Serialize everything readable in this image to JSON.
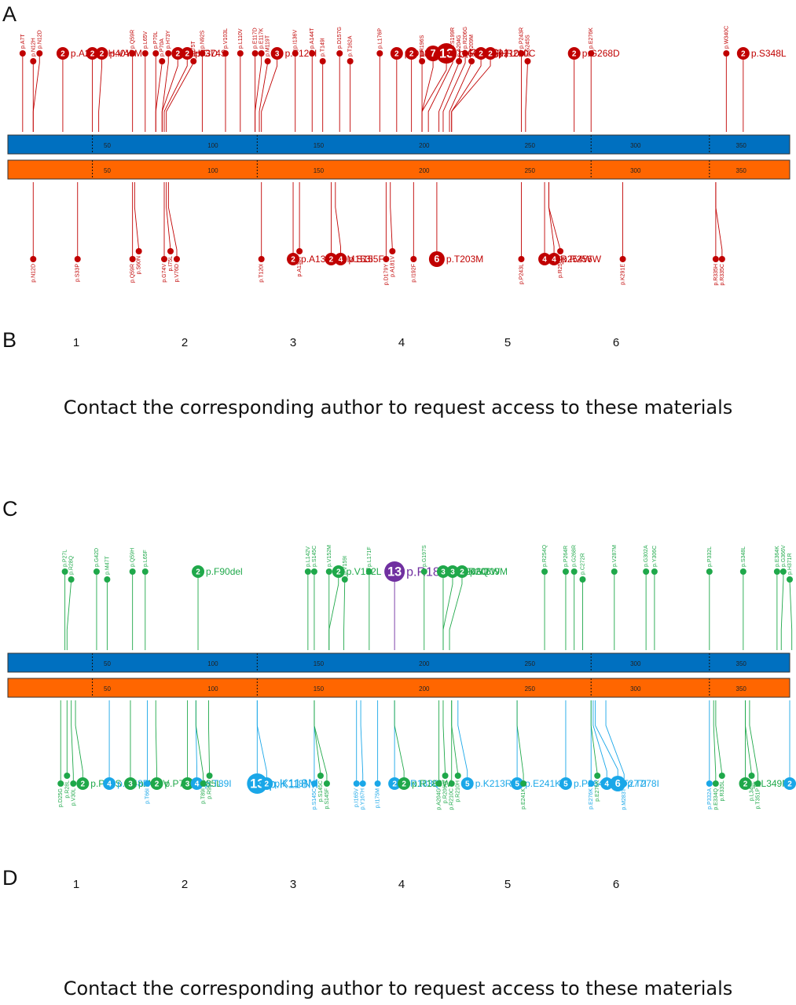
{
  "panels": {
    "A": {
      "letter": "A"
    },
    "B": {
      "letter": "B",
      "notice": "Contact the corresponding author to request access to these materials"
    },
    "C": {
      "letter": "C"
    },
    "D": {
      "letter": "D",
      "notice": "Contact the corresponding author to request access to these materials"
    }
  },
  "domains": [
    "1",
    "2",
    "3",
    "4",
    "5",
    "6"
  ],
  "colors": {
    "bar_top": "#0070c0",
    "bar_bottom": "#ff6600",
    "red": "#c00000",
    "green": "#1fa84a",
    "blue": "#1aa7e8",
    "purple": "#7030a0"
  },
  "chart_data": [
    {
      "type": "lollipop",
      "panel": "A",
      "protein_length": 370,
      "ticks": [
        50,
        100,
        150,
        200,
        250,
        300,
        350
      ],
      "domain_boundaries": [
        40,
        118,
        276,
        332
      ],
      "above": [
        {
          "pos": 7,
          "label": "p.A7T",
          "color": "red"
        },
        {
          "pos": 12,
          "label": "p.N12H",
          "color": "red"
        },
        {
          "pos": 12,
          "label": "p.N12D",
          "color": "red"
        },
        {
          "pos": 26,
          "label": "p.A26T",
          "count": 2,
          "color": "red"
        },
        {
          "pos": 40,
          "label": "p.H40Y",
          "count": 2,
          "color": "red"
        },
        {
          "pos": 43,
          "label": "p.V43M",
          "count": 2,
          "color": "red"
        },
        {
          "pos": 59,
          "label": "p.Q59R",
          "color": "red"
        },
        {
          "pos": 65,
          "label": "p.L65V",
          "color": "red"
        },
        {
          "pos": 70,
          "label": "p.P70L",
          "color": "red"
        },
        {
          "pos": 70,
          "label": "p.P70A",
          "color": "red"
        },
        {
          "pos": 73,
          "label": "p.H73Y",
          "color": "red"
        },
        {
          "pos": 73,
          "label": "p.H73D",
          "count": 2,
          "color": "red"
        },
        {
          "pos": 74,
          "label": "p.G74S",
          "count": 2,
          "color": "red"
        },
        {
          "pos": 75,
          "label": "p.I75T",
          "color": "red"
        },
        {
          "pos": 92,
          "label": "p.N92S",
          "color": "red"
        },
        {
          "pos": 103,
          "label": "p.V103L",
          "color": "red"
        },
        {
          "pos": 110,
          "label": "p.L110V",
          "color": "red"
        },
        {
          "pos": 117,
          "label": "p.E117D",
          "color": "red"
        },
        {
          "pos": 117,
          "label": "p.E117K",
          "color": "red"
        },
        {
          "pos": 119,
          "label": "p.M119T",
          "color": "red"
        },
        {
          "pos": 120,
          "label": "p.T120I",
          "count": 3,
          "color": "red"
        },
        {
          "pos": 136,
          "label": "p.I136V",
          "color": "red"
        },
        {
          "pos": 144,
          "label": "p.A144T",
          "color": "red"
        },
        {
          "pos": 149,
          "label": "p.T149I",
          "color": "red"
        },
        {
          "pos": 157,
          "label": "p.D157G",
          "color": "red"
        },
        {
          "pos": 162,
          "label": "p.T162A",
          "color": "red"
        },
        {
          "pos": 176,
          "label": "p.L176P",
          "color": "red"
        },
        {
          "pos": 184,
          "label": "p.D184Y",
          "count": 2,
          "color": "red"
        },
        {
          "pos": 191,
          "label": "p.K191E",
          "count": 2,
          "color": "red"
        },
        {
          "pos": 196,
          "label": "p.R196S",
          "color": "red"
        },
        {
          "pos": 196,
          "label": "p.R196C",
          "count": 7,
          "color": "red"
        },
        {
          "pos": 196,
          "label": "p.R196H",
          "count": 13,
          "color": "red"
        },
        {
          "pos": 199,
          "label": "p.S199R",
          "color": "red"
        },
        {
          "pos": 204,
          "label": "p.A204G",
          "color": "red"
        },
        {
          "pos": 206,
          "label": "p.R206G",
          "color": "red"
        },
        {
          "pos": 209,
          "label": "p.V209M",
          "color": "red"
        },
        {
          "pos": 210,
          "label": "p.R210H",
          "count": 2,
          "color": "red"
        },
        {
          "pos": 210,
          "label": "p.R210C",
          "count": 2,
          "color": "red"
        },
        {
          "pos": 243,
          "label": "p.P243R",
          "color": "red"
        },
        {
          "pos": 245,
          "label": "p.G245S",
          "color": "red"
        },
        {
          "pos": 268,
          "label": "p.G268D",
          "count": 2,
          "color": "red"
        },
        {
          "pos": 276,
          "label": "p.E276K",
          "color": "red"
        },
        {
          "pos": 340,
          "label": "p.W340C",
          "color": "red"
        },
        {
          "pos": 348,
          "label": "p.S348L",
          "count": 2,
          "color": "red"
        }
      ],
      "below": [
        {
          "pos": 12,
          "label": "p.N12D",
          "color": "red"
        },
        {
          "pos": 33,
          "label": "p.S33P",
          "color": "red"
        },
        {
          "pos": 59,
          "label": "p.Q59R",
          "color": "red"
        },
        {
          "pos": 60,
          "label": "p.S60N",
          "color": "red"
        },
        {
          "pos": 74,
          "label": "p.G74V",
          "color": "red"
        },
        {
          "pos": 75,
          "label": "p.I75L",
          "color": "red"
        },
        {
          "pos": 76,
          "label": "p.V76D",
          "color": "red"
        },
        {
          "pos": 120,
          "label": "p.T120I",
          "color": "red"
        },
        {
          "pos": 135,
          "label": "p.A135V",
          "count": 2,
          "color": "red"
        },
        {
          "pos": 138,
          "label": "p.A138T",
          "color": "red"
        },
        {
          "pos": 153,
          "label": "p.M153I",
          "count": 2,
          "color": "red"
        },
        {
          "pos": 155,
          "label": "p.S155F",
          "count": 4,
          "color": "red"
        },
        {
          "pos": 179,
          "label": "p.D179Y",
          "color": "red"
        },
        {
          "pos": 181,
          "label": "p.A181V",
          "color": "red"
        },
        {
          "pos": 192,
          "label": "p.I192F",
          "color": "red"
        },
        {
          "pos": 203,
          "label": "p.T203M",
          "count": 6,
          "color": "red"
        },
        {
          "pos": 243,
          "label": "p.P243L",
          "color": "red"
        },
        {
          "pos": 254,
          "label": "p.R254W",
          "count": 4,
          "color": "red"
        },
        {
          "pos": 256,
          "label": "p.R256W",
          "count": 4,
          "color": "red"
        },
        {
          "pos": 256,
          "label": "p.R256Q",
          "color": "red"
        },
        {
          "pos": 291,
          "label": "p.K291E",
          "color": "red"
        },
        {
          "pos": 335,
          "label": "p.R335H",
          "color": "red"
        },
        {
          "pos": 335,
          "label": "p.R335C",
          "color": "red"
        }
      ]
    },
    {
      "type": "lollipop",
      "panel": "C",
      "protein_length": 370,
      "ticks": [
        50,
        100,
        150,
        200,
        250,
        300,
        350
      ],
      "domain_boundaries": [
        40,
        118,
        276,
        332
      ],
      "above": [
        {
          "pos": 27,
          "label": "p.P27L",
          "color": "green"
        },
        {
          "pos": 28,
          "label": "p.R28Q",
          "color": "green"
        },
        {
          "pos": 42,
          "label": "p.G42D",
          "color": "green"
        },
        {
          "pos": 47,
          "label": "p.M47T",
          "color": "green"
        },
        {
          "pos": 59,
          "label": "p.Q59H",
          "color": "green"
        },
        {
          "pos": 65,
          "label": "p.L65F",
          "color": "green"
        },
        {
          "pos": 90,
          "label": "p.F90del",
          "count": 2,
          "color": "green"
        },
        {
          "pos": 142,
          "label": "p.L142V",
          "color": "green"
        },
        {
          "pos": 145,
          "label": "p.S145C",
          "color": "green"
        },
        {
          "pos": 152,
          "label": "p.V152M",
          "color": "green"
        },
        {
          "pos": 152,
          "label": "p.V152L",
          "count": 2,
          "color": "green"
        },
        {
          "pos": 159,
          "label": "p.V159I",
          "color": "green"
        },
        {
          "pos": 171,
          "label": "p.L171F",
          "color": "green"
        },
        {
          "pos": 183,
          "label": "p.R183WT",
          "count": 13,
          "color": "purple"
        },
        {
          "pos": 197,
          "label": "p.G197S",
          "color": "green"
        },
        {
          "pos": 206,
          "label": "p.R206Q",
          "count": 3,
          "color": "green"
        },
        {
          "pos": 206,
          "label": "p.R206W",
          "count": 3,
          "color": "green"
        },
        {
          "pos": 209,
          "label": "p.V209M",
          "count": 2,
          "color": "green"
        },
        {
          "pos": 254,
          "label": "p.R254Q",
          "color": "green"
        },
        {
          "pos": 264,
          "label": "p.P264R",
          "color": "green"
        },
        {
          "pos": 268,
          "label": "p.G268R",
          "color": "green"
        },
        {
          "pos": 272,
          "label": "p.C272R",
          "color": "green"
        },
        {
          "pos": 287,
          "label": "p.V287M",
          "color": "green"
        },
        {
          "pos": 302,
          "label": "p.G302A",
          "color": "green"
        },
        {
          "pos": 306,
          "label": "p.Y306C",
          "color": "green"
        },
        {
          "pos": 332,
          "label": "p.P332L",
          "color": "green"
        },
        {
          "pos": 348,
          "label": "p.S348L",
          "color": "green"
        },
        {
          "pos": 364,
          "label": "p.E364K",
          "color": "green"
        },
        {
          "pos": 366,
          "label": "p.G366V",
          "color": "green"
        },
        {
          "pos": 371,
          "label": "p.H371R",
          "color": "green"
        }
      ],
      "below": [
        {
          "pos": 25,
          "label": "p.D25G",
          "color": "green"
        },
        {
          "pos": 28,
          "label": "p.R28L",
          "color": "green"
        },
        {
          "pos": 30,
          "label": "p.V30L",
          "color": "green"
        },
        {
          "pos": 32,
          "label": "p.P32S",
          "count": 2,
          "color": "green"
        },
        {
          "pos": 48,
          "label": "p.G48R",
          "count": 4,
          "color": "blue"
        },
        {
          "pos": 58,
          "label": "p.A58V",
          "count": 3,
          "color": "green"
        },
        {
          "pos": 66,
          "label": "p.T66I",
          "color": "blue"
        },
        {
          "pos": 70,
          "label": "p.P70L",
          "count": 2,
          "color": "green"
        },
        {
          "pos": 85,
          "label": "p.I85L",
          "count": 3,
          "color": "green"
        },
        {
          "pos": 89,
          "label": "p.T89I",
          "count": 4,
          "color": "blue"
        },
        {
          "pos": 89,
          "label": "p.T89I",
          "color": "green"
        },
        {
          "pos": 95,
          "label": "p.R95C",
          "color": "green"
        },
        {
          "pos": 118,
          "label": "p.K118M",
          "count": 13,
          "color": "blue"
        },
        {
          "pos": 118,
          "label": "p.K118N",
          "count": 2,
          "color": "blue"
        },
        {
          "pos": 145,
          "label": "p.S145C",
          "color": "blue"
        },
        {
          "pos": 145,
          "label": "p.S145C",
          "color": "green"
        },
        {
          "pos": 145,
          "label": "p.S145F",
          "color": "green"
        },
        {
          "pos": 165,
          "label": "p.I165V",
          "color": "blue"
        },
        {
          "pos": 167,
          "label": "p.Y167H",
          "color": "blue"
        },
        {
          "pos": 175,
          "label": "p.I175M",
          "color": "blue"
        },
        {
          "pos": 183,
          "label": "p.R183Q",
          "count": 2,
          "color": "blue"
        },
        {
          "pos": 183,
          "label": "p.R183W",
          "count": 2,
          "color": "green"
        },
        {
          "pos": 204,
          "label": "p.A204G",
          "color": "green"
        },
        {
          "pos": 206,
          "label": "p.R206W",
          "color": "green"
        },
        {
          "pos": 210,
          "label": "p.R210C",
          "color": "green"
        },
        {
          "pos": 210,
          "label": "p.R210H",
          "color": "green"
        },
        {
          "pos": 213,
          "label": "p.K213R",
          "count": 5,
          "color": "blue"
        },
        {
          "pos": 241,
          "label": "p.E241K",
          "count": 5,
          "color": "blue"
        },
        {
          "pos": 241,
          "label": "p.E241K",
          "color": "green"
        },
        {
          "pos": 264,
          "label": "p.P264L",
          "count": 5,
          "color": "blue"
        },
        {
          "pos": 276,
          "label": "p.E276K",
          "color": "blue"
        },
        {
          "pos": 276,
          "label": "p.E276K",
          "color": "green"
        },
        {
          "pos": 277,
          "label": "p.T277I",
          "count": 4,
          "color": "blue"
        },
        {
          "pos": 278,
          "label": "p.T278I",
          "count": 6,
          "color": "blue"
        },
        {
          "pos": 283,
          "label": "p.M283T",
          "color": "blue"
        },
        {
          "pos": 332,
          "label": "p.P332A",
          "color": "blue"
        },
        {
          "pos": 334,
          "label": "p.E334Q",
          "color": "green"
        },
        {
          "pos": 335,
          "label": "p.R335L",
          "color": "green"
        },
        {
          "pos": 349,
          "label": "p.L349M",
          "count": 2,
          "color": "green"
        },
        {
          "pos": 349,
          "label": "p.L349P",
          "color": "green"
        },
        {
          "pos": 351,
          "label": "p.T351P",
          "color": "green"
        },
        {
          "pos": 370,
          "label": "p.V370A",
          "count": 2,
          "color": "blue"
        }
      ]
    }
  ]
}
